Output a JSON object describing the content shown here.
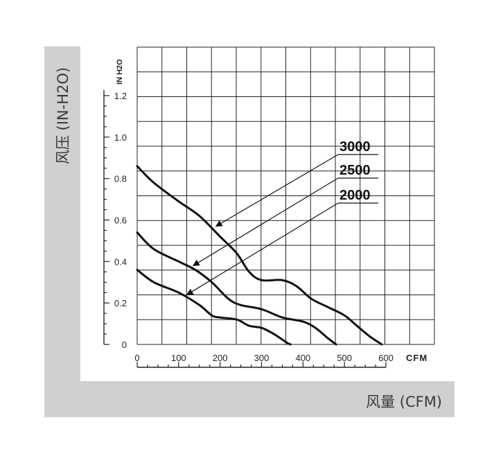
{
  "page": {
    "y_axis_title": "风压 (IN-H2O)",
    "x_axis_title": "风量 (CFM)"
  },
  "chart_data": {
    "type": "line",
    "ylabel": "IN H2O",
    "xlabel": "CFM",
    "xlim": [
      0,
      600
    ],
    "ylim": [
      0,
      1.45
    ],
    "x_ticks": [
      0,
      100,
      200,
      300,
      400,
      500,
      600
    ],
    "x_tick_labels": [
      "0",
      "100",
      "200",
      "300",
      "400",
      "500",
      "600"
    ],
    "y_ticks": [
      0,
      0.2,
      0.4,
      0.6,
      0.8,
      1.0,
      1.2
    ],
    "y_tick_labels": [
      "0",
      "0.2",
      "0.4",
      "0.6",
      "0.8",
      "1.0",
      "1.2"
    ],
    "grid": true,
    "line_color": "#111111",
    "series": [
      {
        "name": "3000",
        "points": [
          [
            0,
            0.86
          ],
          [
            40,
            0.78
          ],
          [
            100,
            0.69
          ],
          [
            150,
            0.62
          ],
          [
            200,
            0.52
          ],
          [
            240,
            0.44
          ],
          [
            270,
            0.35
          ],
          [
            300,
            0.31
          ],
          [
            350,
            0.31
          ],
          [
            385,
            0.28
          ],
          [
            420,
            0.22
          ],
          [
            460,
            0.18
          ],
          [
            500,
            0.14
          ],
          [
            530,
            0.09
          ],
          [
            560,
            0.04
          ],
          [
            590,
            0.0
          ]
        ]
      },
      {
        "name": "2500",
        "points": [
          [
            0,
            0.54
          ],
          [
            40,
            0.46
          ],
          [
            100,
            0.4
          ],
          [
            140,
            0.36
          ],
          [
            180,
            0.3
          ],
          [
            220,
            0.22
          ],
          [
            250,
            0.19
          ],
          [
            300,
            0.17
          ],
          [
            350,
            0.13
          ],
          [
            400,
            0.11
          ],
          [
            430,
            0.08
          ],
          [
            460,
            0.03
          ],
          [
            480,
            0.0
          ]
        ]
      },
      {
        "name": "2000",
        "points": [
          [
            0,
            0.36
          ],
          [
            40,
            0.3
          ],
          [
            100,
            0.25
          ],
          [
            150,
            0.19
          ],
          [
            180,
            0.14
          ],
          [
            200,
            0.13
          ],
          [
            240,
            0.12
          ],
          [
            270,
            0.09
          ],
          [
            300,
            0.08
          ],
          [
            330,
            0.05
          ],
          [
            360,
            0.01
          ],
          [
            370,
            0.0
          ]
        ]
      }
    ],
    "annotations": [
      {
        "label": "3000",
        "target": [
          190,
          0.57
        ]
      },
      {
        "label": "2500",
        "target": [
          135,
          0.38
        ]
      },
      {
        "label": "2000",
        "target": [
          120,
          0.24
        ]
      }
    ]
  }
}
